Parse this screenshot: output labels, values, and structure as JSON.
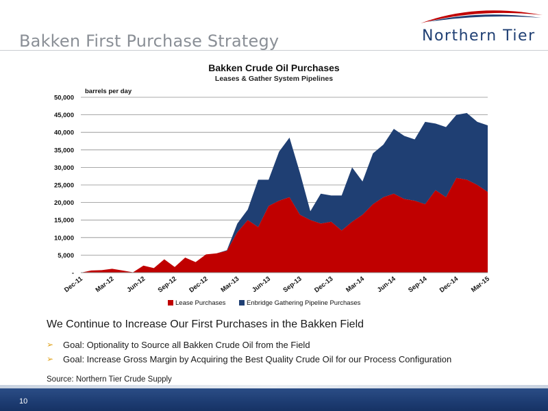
{
  "slide": {
    "title": "Bakken First Purchase Strategy",
    "logo_text": "Northern Tier",
    "headline": "We Continue to Increase Our First Purchases in the Bakken Field",
    "bullets": [
      "Goal: Optionality to Source all Bakken Crude Oil from the Field",
      "Goal: Increase Gross Margin by Acquiring the Best Quality Crude Oil for our Process Configuration"
    ],
    "source": "Source:  Northern Tier Crude Supply",
    "page_number": "10"
  },
  "colors": {
    "lease": "#c00000",
    "pipeline": "#1f3f73",
    "bullet_arrow": "#e0a21a"
  },
  "chart_data": {
    "type": "area",
    "stacked": true,
    "title": "Bakken Crude Oil Purchases",
    "subtitle": "Leases & Gather System Pipelines",
    "ylabel": "barrels per day",
    "ylim": [
      0,
      50000
    ],
    "yticks": [
      "-",
      "5,000",
      "10,000",
      "15,000",
      "20,000",
      "25,000",
      "30,000",
      "35,000",
      "40,000",
      "45,000",
      "50,000"
    ],
    "grid": true,
    "legend_position": "bottom",
    "x": [
      "Dec-11",
      "Jan-12",
      "Feb-12",
      "Mar-12",
      "Apr-12",
      "May-12",
      "Jun-12",
      "Jul-12",
      "Aug-12",
      "Sep-12",
      "Oct-12",
      "Nov-12",
      "Dec-12",
      "Jan-13",
      "Feb-13",
      "Mar-13",
      "Apr-13",
      "May-13",
      "Jun-13",
      "Jul-13",
      "Aug-13",
      "Sep-13",
      "Oct-13",
      "Nov-13",
      "Dec-13",
      "Jan-14",
      "Feb-14",
      "Mar-14",
      "Apr-14",
      "May-14",
      "Jun-14",
      "Jul-14",
      "Aug-14",
      "Sep-14",
      "Oct-14",
      "Nov-14",
      "Dec-14",
      "Jan-15",
      "Feb-15",
      "Mar-15"
    ],
    "xtick_labels": [
      "Dec-11",
      "Mar-12",
      "Jun-12",
      "Sep-12",
      "Dec-12",
      "Mar-13",
      "Jun-13",
      "Sep-13",
      "Dec-13",
      "Mar-14",
      "Jun-14",
      "Sep-14",
      "Dec-14",
      "Mar-15"
    ],
    "series": [
      {
        "name": "Lease Purchases",
        "values": [
          0,
          600,
          700,
          1100,
          600,
          100,
          2000,
          1300,
          3800,
          1600,
          4300,
          3000,
          5200,
          5500,
          6200,
          11500,
          15000,
          13000,
          19000,
          20500,
          21500,
          16500,
          15000,
          14000,
          14500,
          12000,
          14500,
          16500,
          19500,
          21500,
          22500,
          21000,
          20500,
          19500,
          23500,
          21500,
          27000,
          26500,
          25000,
          23000
        ]
      },
      {
        "name": "Enbridge Gathering Pipeline Purchases",
        "values": [
          0,
          0,
          0,
          0,
          0,
          0,
          0,
          0,
          0,
          0,
          0,
          0,
          0,
          0,
          200,
          2500,
          3000,
          13500,
          7500,
          14000,
          17000,
          12000,
          2500,
          8500,
          7500,
          10000,
          15500,
          9500,
          14500,
          15000,
          18500,
          18000,
          17500,
          23500,
          19000,
          20000,
          18000,
          19000,
          18000,
          19000
        ]
      }
    ]
  }
}
